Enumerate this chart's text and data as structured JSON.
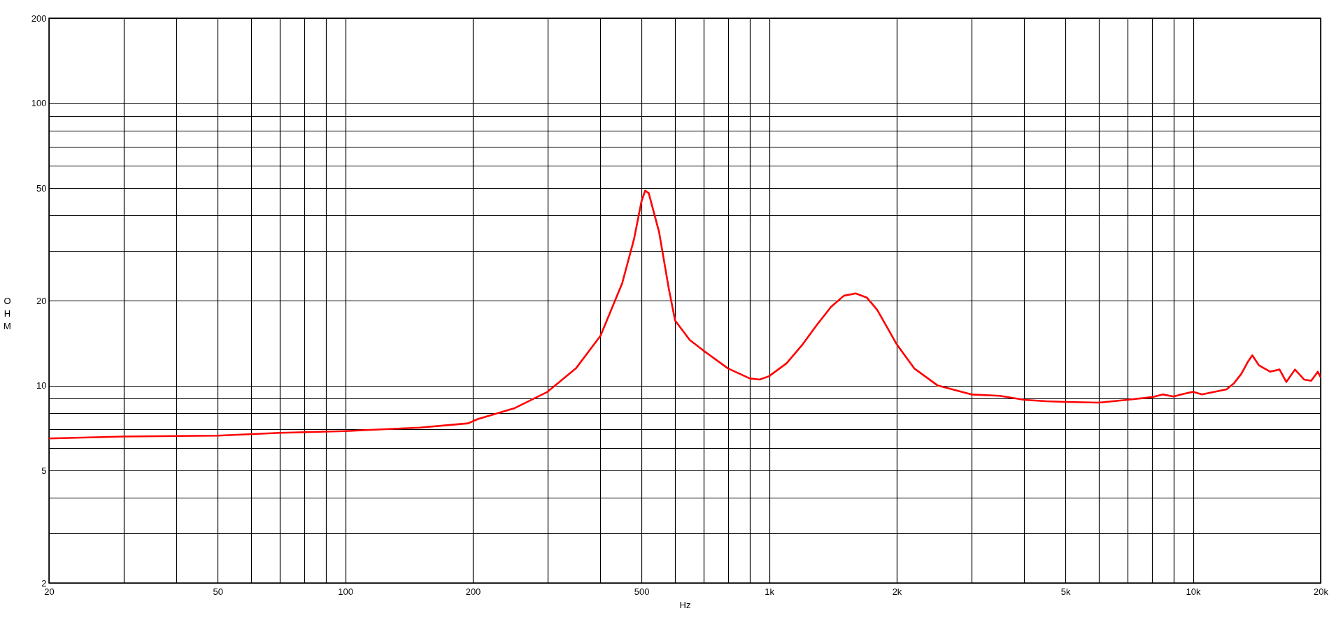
{
  "chart_data": {
    "type": "line",
    "xlabel": "Hz",
    "ylabel": "OHM",
    "log": "xy",
    "grid": true,
    "x": [
      20,
      30,
      50,
      70,
      100,
      150,
      195,
      205,
      250,
      300,
      350,
      400,
      450,
      480,
      500,
      510,
      520,
      550,
      580,
      600,
      650,
      700,
      800,
      900,
      950,
      1000,
      1100,
      1200,
      1300,
      1400,
      1500,
      1600,
      1700,
      1800,
      2000,
      2200,
      2500,
      3000,
      3500,
      4000,
      4500,
      5000,
      6000,
      7000,
      8000,
      8500,
      9000,
      9500,
      10000,
      10500,
      12000,
      12500,
      13000,
      13500,
      13800,
      14300,
      15200,
      16000,
      16600,
      17400,
      18300,
      19000,
      19700,
      20000
    ],
    "series": [
      {
        "color": "#ff0000",
        "values": [
          6.5,
          6.6,
          6.65,
          6.8,
          6.9,
          7.1,
          7.35,
          7.6,
          8.3,
          9.5,
          11.5,
          15,
          23,
          33,
          45,
          49,
          48,
          35,
          22,
          17,
          14.5,
          13.3,
          11.5,
          10.6,
          10.5,
          10.8,
          12,
          14,
          16.5,
          19,
          20.8,
          21.2,
          20.5,
          18.5,
          14,
          11.5,
          10,
          9.3,
          9.2,
          8.9,
          8.8,
          8.75,
          8.7,
          8.9,
          9.1,
          9.3,
          9.15,
          9.35,
          9.5,
          9.3,
          9.7,
          10.2,
          11,
          12.2,
          12.8,
          11.8,
          11.2,
          11.4,
          10.3,
          11.4,
          10.5,
          10.4,
          11.2,
          10.7
        ]
      }
    ],
    "xlim": [
      20,
      20000
    ],
    "xticks": [
      20,
      {
        "value": 30,
        "label": null
      },
      {
        "value": 40,
        "label": null
      },
      50,
      {
        "value": 60,
        "label": null
      },
      {
        "value": 70,
        "label": null
      },
      {
        "value": 80,
        "label": null
      },
      {
        "value": 90,
        "label": null
      },
      100,
      200,
      {
        "value": 300,
        "label": null
      },
      {
        "value": 400,
        "label": null
      },
      500,
      {
        "value": 600,
        "label": null
      },
      {
        "value": 700,
        "label": null
      },
      {
        "value": 800,
        "label": null
      },
      {
        "value": 900,
        "label": null
      },
      {
        "value": 1000,
        "label": "1k"
      },
      {
        "value": 2000,
        "label": "2k"
      },
      {
        "value": 3000,
        "label": null
      },
      {
        "value": 4000,
        "label": null
      },
      {
        "value": 5000,
        "label": "5k"
      },
      {
        "value": 6000,
        "label": null
      },
      {
        "value": 7000,
        "label": null
      },
      {
        "value": 8000,
        "label": null
      },
      {
        "value": 9000,
        "label": null
      },
      {
        "value": 10000,
        "label": "10k"
      },
      {
        "value": 20000,
        "label": "20k"
      }
    ],
    "ylim": [
      2,
      200
    ],
    "yticks": [
      2,
      {
        "value": 3,
        "label": null
      },
      {
        "value": 4,
        "label": null
      },
      5,
      {
        "value": 6,
        "label": null
      },
      {
        "value": 7,
        "label": null
      },
      {
        "value": 8,
        "label": null
      },
      {
        "value": 9,
        "label": null
      },
      10,
      20,
      {
        "value": 30,
        "label": null
      },
      {
        "value": 40,
        "label": null
      },
      50,
      {
        "value": 60,
        "label": null
      },
      {
        "value": 70,
        "label": null
      },
      {
        "value": 80,
        "label": null
      },
      {
        "value": 90,
        "label": null
      },
      100,
      200
    ]
  }
}
